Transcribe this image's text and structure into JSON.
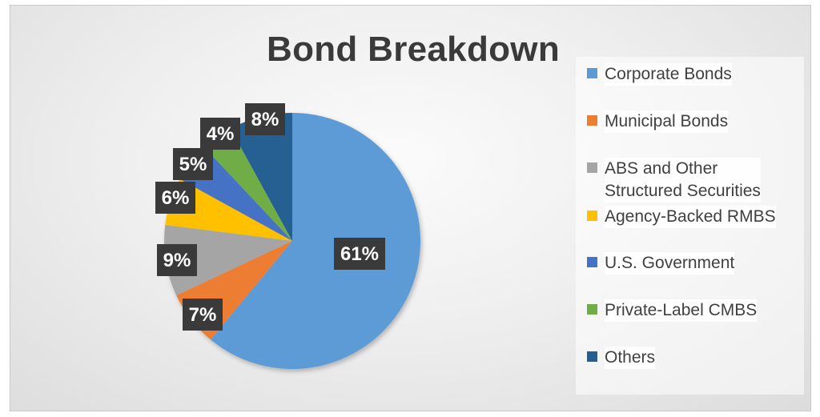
{
  "chart_data": {
    "type": "pie",
    "title": "Bond Breakdown",
    "categories": [
      "Corporate Bonds",
      "Municipal Bonds",
      "ABS and Other Structured Securities",
      "Agency-Backed RMBS",
      "U.S. Government",
      "Private-Label CMBS",
      "Others"
    ],
    "values": [
      61,
      7,
      9,
      6,
      5,
      4,
      8
    ],
    "labels": [
      "61%",
      "7%",
      "9%",
      "6%",
      "5%",
      "4%",
      "8%"
    ],
    "colors": [
      "#5b9bd5",
      "#ed7d31",
      "#a5a5a5",
      "#ffc000",
      "#4472c4",
      "#70ad47",
      "#255e91"
    ],
    "legend_position": "right"
  },
  "legend": {
    "items": [
      {
        "label": "Corporate Bonds",
        "color": "#5b9bd5"
      },
      {
        "label": "Municipal Bonds",
        "color": "#ed7d31"
      },
      {
        "label": "ABS and Other\nStructured Securities",
        "color": "#a5a5a5"
      },
      {
        "label": "Agency-Backed RMBS",
        "color": "#ffc000"
      },
      {
        "label": "U.S. Government",
        "color": "#4472c4"
      },
      {
        "label": "Private-Label CMBS",
        "color": "#70ad47"
      },
      {
        "label": "Others",
        "color": "#255e91"
      }
    ]
  }
}
